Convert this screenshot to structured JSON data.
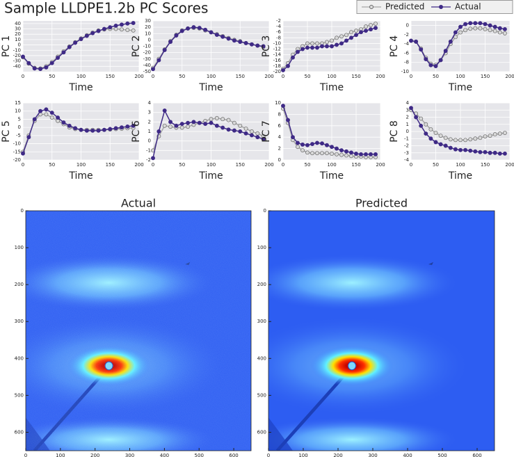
{
  "title": "Sample LLDPE1.2b PC Scores",
  "legend": "upper right",
  "chart_data": [
    {
      "type": "line",
      "ylabel": "PC 1",
      "xlabel": "Time",
      "x": [
        0,
        10,
        20,
        30,
        40,
        50,
        60,
        70,
        80,
        90,
        100,
        110,
        120,
        130,
        140,
        150,
        160,
        170,
        180,
        190
      ],
      "xlim": [
        0,
        200
      ],
      "xticks": [
        0,
        50,
        100,
        150,
        200
      ],
      "ylim": [
        -50,
        45
      ],
      "yticks": [
        -40,
        -30,
        -20,
        -10,
        0,
        10,
        20,
        30,
        40
      ],
      "series": [
        {
          "name": "Predicted",
          "color": "#a6a6a6",
          "values": [
            -23,
            -35,
            -43,
            -44,
            -40,
            -32,
            -22,
            -12,
            -3,
            5,
            12,
            18,
            23,
            27,
            29,
            30,
            30,
            29,
            28,
            27
          ]
        },
        {
          "name": "Actual",
          "color": "#3f2a86",
          "values": [
            -22,
            -34,
            -44,
            -45,
            -42,
            -34,
            -24,
            -14,
            -4,
            4,
            11,
            17,
            22,
            26,
            30,
            33,
            36,
            38,
            40,
            41
          ]
        }
      ]
    },
    {
      "type": "line",
      "ylabel": "PC 2",
      "xlabel": "Time",
      "x": [
        0,
        10,
        20,
        30,
        40,
        50,
        60,
        70,
        80,
        90,
        100,
        110,
        120,
        130,
        140,
        150,
        160,
        170,
        180,
        190
      ],
      "xlim": [
        0,
        200
      ],
      "xticks": [
        0,
        50,
        100,
        150,
        200
      ],
      "ylim": [
        -50,
        30
      ],
      "yticks": [
        -50,
        -40,
        -30,
        -20,
        -10,
        0,
        10,
        20,
        30
      ],
      "series": [
        {
          "name": "Predicted",
          "color": "#a6a6a6",
          "values": [
            -44,
            -30,
            -15,
            -2,
            8,
            15,
            18,
            19,
            18,
            15,
            12,
            9,
            6,
            3,
            0,
            -2,
            -5,
            -7,
            -9,
            -11
          ]
        },
        {
          "name": "Actual",
          "color": "#3f2a86",
          "values": [
            -46,
            -32,
            -16,
            -3,
            7,
            14,
            18,
            20,
            19,
            16,
            12,
            8,
            5,
            2,
            -1,
            -3,
            -5,
            -7,
            -9,
            -10
          ]
        }
      ]
    },
    {
      "type": "line",
      "ylabel": "PC 3",
      "xlabel": "Time",
      "x": [
        0,
        10,
        20,
        30,
        40,
        50,
        60,
        70,
        80,
        90,
        100,
        110,
        120,
        130,
        140,
        150,
        160,
        170,
        180,
        190
      ],
      "xlim": [
        0,
        200
      ],
      "xticks": [
        0,
        50,
        100,
        150,
        200
      ],
      "ylim": [
        -20,
        -2
      ],
      "yticks": [
        -20,
        -18,
        -16,
        -14,
        -12,
        -10,
        -8,
        -6,
        -4,
        -2
      ],
      "series": [
        {
          "name": "Predicted",
          "color": "#a6a6a6",
          "values": [
            -19,
            -17,
            -14,
            -12,
            -11,
            -10,
            -10,
            -10,
            -10,
            -9.5,
            -9,
            -8,
            -7.5,
            -7,
            -6,
            -5.5,
            -5,
            -4,
            -3.5,
            -3
          ]
        },
        {
          "name": "Actual",
          "color": "#3f2a86",
          "values": [
            -19.5,
            -18,
            -15,
            -13,
            -12,
            -11.5,
            -11.5,
            -11.5,
            -11,
            -11,
            -11,
            -10.5,
            -10,
            -9,
            -8,
            -7,
            -6,
            -5.5,
            -5,
            -4.5
          ]
        }
      ]
    },
    {
      "type": "line",
      "ylabel": "PC 4",
      "xlabel": "Time",
      "x": [
        0,
        10,
        20,
        30,
        40,
        50,
        60,
        70,
        80,
        90,
        100,
        110,
        120,
        130,
        140,
        150,
        160,
        170,
        180,
        190
      ],
      "xlim": [
        0,
        200
      ],
      "xticks": [
        0,
        50,
        100,
        150,
        200
      ],
      "ylim": [
        -10,
        1
      ],
      "yticks": [
        -10,
        -8,
        -6,
        -4,
        -2,
        0
      ],
      "series": [
        {
          "name": "Predicted",
          "color": "#a6a6a6",
          "values": [
            -3.3,
            -3.5,
            -5,
            -7,
            -8.3,
            -8.5,
            -7.5,
            -6,
            -4,
            -2.5,
            -1.5,
            -1,
            -0.7,
            -0.6,
            -0.6,
            -0.8,
            -1,
            -1.2,
            -1.5,
            -1.7
          ]
        },
        {
          "name": "Actual",
          "color": "#3f2a86",
          "values": [
            -3.3,
            -3.5,
            -5.2,
            -7.3,
            -8.6,
            -8.8,
            -7.5,
            -5.5,
            -3.5,
            -1.5,
            -0.3,
            0.3,
            0.5,
            0.5,
            0.5,
            0.3,
            0,
            -0.3,
            -0.6,
            -0.8
          ]
        }
      ]
    },
    {
      "type": "line",
      "ylabel": "PC 5",
      "xlabel": "Time",
      "x": [
        0,
        10,
        20,
        30,
        40,
        50,
        60,
        70,
        80,
        90,
        100,
        110,
        120,
        130,
        140,
        150,
        160,
        170,
        180,
        190
      ],
      "xlim": [
        0,
        200
      ],
      "xticks": [
        0,
        50,
        100,
        150,
        200
      ],
      "ylim": [
        -20,
        15
      ],
      "yticks": [
        -20,
        -15,
        -10,
        -5,
        0,
        5,
        10,
        15
      ],
      "series": [
        {
          "name": "Predicted",
          "color": "#a6a6a6",
          "values": [
            -15,
            -5,
            4,
            8,
            8,
            6,
            4,
            2,
            0,
            -1,
            -1.5,
            -1.5,
            -1.5,
            -1.5,
            -1.5,
            -1.3,
            -1,
            -0.8,
            -0.5,
            -0.3
          ]
        },
        {
          "name": "Actual",
          "color": "#3f2a86",
          "values": [
            -16,
            -6,
            5,
            10,
            11,
            9,
            6,
            3,
            1,
            -0.5,
            -1.5,
            -2,
            -2,
            -2,
            -1.5,
            -1,
            -0.5,
            0,
            0.5,
            1
          ]
        }
      ]
    },
    {
      "type": "line",
      "ylabel": "PC 6",
      "xlabel": "Time",
      "x": [
        0,
        10,
        20,
        30,
        40,
        50,
        60,
        70,
        80,
        90,
        100,
        110,
        120,
        130,
        140,
        150,
        160,
        170,
        180,
        190
      ],
      "xlim": [
        0,
        200
      ],
      "xticks": [
        0,
        50,
        100,
        150,
        200
      ],
      "ylim": [
        -2,
        4
      ],
      "yticks": [
        -2,
        -1,
        0,
        1,
        2,
        3,
        4
      ],
      "series": [
        {
          "name": "Predicted",
          "color": "#a6a6a6",
          "values": [
            -1,
            0.5,
            1.6,
            1.5,
            1.4,
            1.4,
            1.5,
            1.7,
            1.9,
            2.1,
            2.3,
            2.4,
            2.3,
            2.2,
            1.9,
            1.6,
            1.3,
            1,
            0.8,
            0.5
          ]
        },
        {
          "name": "Actual",
          "color": "#3f2a86",
          "values": [
            -1.8,
            1,
            3.2,
            2,
            1.6,
            1.8,
            1.9,
            2,
            1.9,
            1.8,
            1.9,
            1.6,
            1.4,
            1.2,
            1.1,
            1,
            0.8,
            0.6,
            0.4,
            0.2
          ]
        }
      ]
    },
    {
      "type": "line",
      "ylabel": "PC 7",
      "xlabel": "Time",
      "x": [
        0,
        10,
        20,
        30,
        40,
        50,
        60,
        70,
        80,
        90,
        100,
        110,
        120,
        130,
        140,
        150,
        160,
        170,
        180,
        190
      ],
      "xlim": [
        0,
        200
      ],
      "xticks": [
        0,
        50,
        100,
        150,
        200
      ],
      "ylim": [
        0,
        10
      ],
      "yticks": [
        0,
        2,
        4,
        6,
        8,
        10
      ],
      "series": [
        {
          "name": "Predicted",
          "color": "#a6a6a6",
          "values": [
            9,
            6.5,
            3.5,
            2.3,
            1.7,
            1.3,
            1.2,
            1.2,
            1.2,
            1.2,
            1.1,
            1,
            0.9,
            0.8,
            0.7,
            0.6,
            0.6,
            0.5,
            0.5,
            0.5
          ]
        },
        {
          "name": "Actual",
          "color": "#3f2a86",
          "values": [
            9.5,
            7,
            4,
            3,
            2.7,
            2.6,
            2.8,
            3,
            2.9,
            2.6,
            2.3,
            2,
            1.7,
            1.5,
            1.3,
            1.1,
            1,
            1,
            1,
            1
          ]
        }
      ]
    },
    {
      "type": "line",
      "ylabel": "PC 8",
      "xlabel": "Time",
      "x": [
        0,
        10,
        20,
        30,
        40,
        50,
        60,
        70,
        80,
        90,
        100,
        110,
        120,
        130,
        140,
        150,
        160,
        170,
        180,
        190
      ],
      "xlim": [
        0,
        200
      ],
      "xticks": [
        0,
        50,
        100,
        150,
        200
      ],
      "ylim": [
        -4,
        4
      ],
      "yticks": [
        -4,
        -3,
        -2,
        -1,
        0,
        1,
        2,
        3,
        4
      ],
      "series": [
        {
          "name": "Predicted",
          "color": "#a6a6a6",
          "values": [
            3,
            2.5,
            1.8,
            1,
            0.3,
            -0.2,
            -0.6,
            -0.9,
            -1.1,
            -1.2,
            -1.2,
            -1.2,
            -1.1,
            -1,
            -0.9,
            -0.7,
            -0.6,
            -0.4,
            -0.3,
            -0.2
          ]
        },
        {
          "name": "Actual",
          "color": "#3f2a86",
          "values": [
            3.3,
            2,
            0.8,
            -0.3,
            -1,
            -1.5,
            -1.8,
            -2,
            -2.3,
            -2.5,
            -2.6,
            -2.6,
            -2.7,
            -2.8,
            -2.9,
            -2.9,
            -3,
            -3,
            -3.1,
            -3.1
          ]
        }
      ]
    },
    {
      "type": "image",
      "title": "Actual",
      "noise": true,
      "xlim": [
        0,
        650
      ],
      "xticks": [
        0,
        100,
        200,
        300,
        400,
        500,
        600
      ],
      "ylim": [
        650,
        0
      ],
      "yticks": [
        0,
        100,
        200,
        300,
        400,
        500,
        600
      ]
    },
    {
      "type": "image",
      "title": "Predicted",
      "noise": false,
      "xlim": [
        0,
        650
      ],
      "xticks": [
        0,
        100,
        200,
        300,
        400,
        500,
        600
      ],
      "ylim": [
        650,
        0
      ],
      "yticks": [
        0,
        100,
        200,
        300,
        400,
        500,
        600
      ]
    }
  ]
}
